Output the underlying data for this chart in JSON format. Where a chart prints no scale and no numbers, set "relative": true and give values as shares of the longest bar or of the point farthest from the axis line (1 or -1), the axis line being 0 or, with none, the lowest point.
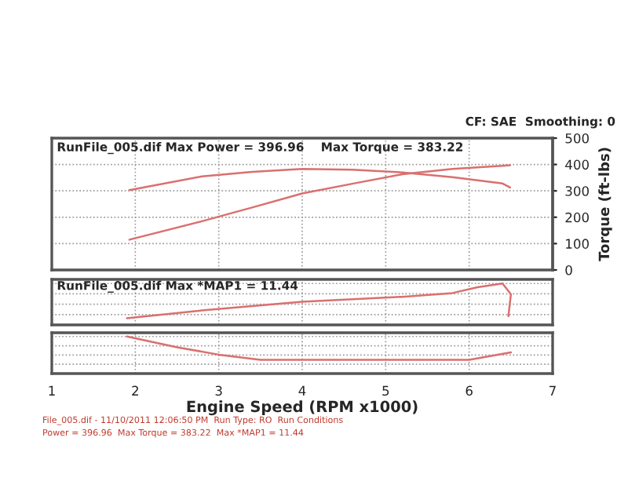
{
  "chart_data": [
    {
      "type": "line",
      "title": "RunFile_005.dif Max Power = 396.96    Max Torque = 383.22",
      "y2label": "Torque (ft-lbs)",
      "annotations": [
        "CF: SAE  Smoothing: 0"
      ],
      "xlim": [
        1,
        7
      ],
      "xticks": [
        1,
        2,
        3,
        4,
        5,
        6,
        7
      ],
      "y2lim": [
        0,
        500
      ],
      "y2ticks": [
        0,
        100,
        200,
        300,
        400,
        500
      ],
      "tick_labels": "y",
      "grid": true,
      "series": [
        {
          "color": "#d9706e",
          "axis": "y2",
          "x": [
            1.93,
            2.8,
            3.4,
            4.0,
            4.6,
            5.2,
            5.8,
            6.4,
            6.49
          ],
          "values": [
            303,
            355,
            372,
            383,
            380,
            370,
            352,
            328,
            313
          ]
        },
        {
          "color": "#d9706e",
          "axis": "y2",
          "x": [
            1.93,
            2.8,
            3.4,
            4.0,
            4.6,
            5.2,
            5.8,
            6.4,
            6.49
          ],
          "values": [
            115,
            185,
            237,
            290,
            327,
            363,
            383,
            395,
            397
          ]
        }
      ]
    },
    {
      "type": "line",
      "title": "RunFile_005.dif Max *MAP1 = 11.44",
      "relative": true,
      "xlim": [
        1,
        7
      ],
      "xticks": [
        1,
        2,
        3,
        4,
        5,
        6,
        7
      ],
      "tick_labels": false,
      "grid": true,
      "series": [
        {
          "color": "#d9706e",
          "x": [
            1.9,
            2.8,
            4.0,
            5.2,
            5.8,
            6.1,
            6.4,
            6.5,
            6.47
          ],
          "values": [
            0.16,
            0.35,
            0.56,
            0.68,
            0.77,
            0.91,
            1.0,
            0.74,
            0.21
          ]
        }
      ]
    },
    {
      "type": "line",
      "relative": true,
      "xlabel": "Engine Speed (RPM x1000)",
      "xlim": [
        1,
        7
      ],
      "xticks": [
        1,
        2,
        3,
        4,
        5,
        6,
        7
      ],
      "grid": true,
      "annotations": [
        "File_005.dif - 11/10/2011 12:06:50 PM  Run Type: RO  Run Conditions",
        "Power = 396.96  Max Torque = 383.22  Max *MAP1 = 11.44"
      ],
      "series": [
        {
          "color": "#d9706e",
          "x": [
            1.9,
            2.5,
            3.0,
            3.5,
            5.0,
            6.0,
            6.5
          ],
          "values": [
            1.0,
            0.71,
            0.51,
            0.37,
            0.37,
            0.37,
            0.57
          ]
        }
      ]
    }
  ]
}
